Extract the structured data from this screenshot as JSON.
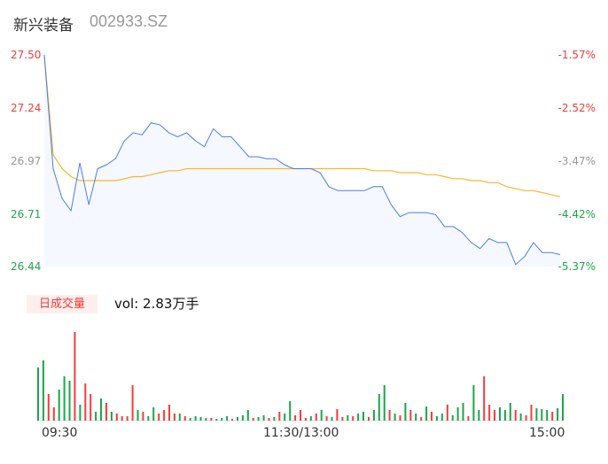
{
  "header": {
    "name": "新兴装备",
    "code": "002933.SZ"
  },
  "price_axis": [
    {
      "label": "27.50",
      "color": "#f23d3d"
    },
    {
      "label": "27.24",
      "color": "#f23d3d"
    },
    {
      "label": "26.97",
      "color": "#999999"
    },
    {
      "label": "26.71",
      "color": "#1aa64a"
    },
    {
      "label": "26.44",
      "color": "#1aa64a"
    }
  ],
  "pct_axis": [
    {
      "label": "-1.57%",
      "color": "#f23d3d"
    },
    {
      "label": "-2.52%",
      "color": "#f23d3d"
    },
    {
      "label": "-3.47%",
      "color": "#999999"
    },
    {
      "label": "-4.42%",
      "color": "#1aa64a"
    },
    {
      "label": "-5.37%",
      "color": "#1aa64a"
    }
  ],
  "volume": {
    "tab_label": "日成交量",
    "vol_text": "vol: 2.83万手"
  },
  "time_axis": [
    "09:30",
    "11:30/13:00",
    "15:00"
  ],
  "chart_data": {
    "type": "line",
    "ylim": [
      26.44,
      27.5
    ],
    "colors": {
      "price": "#4a7cf7",
      "avg": "#f5b82e",
      "up": "#f23d3d",
      "down": "#1aa64a"
    },
    "price": [
      27.5,
      26.93,
      26.78,
      26.72,
      26.96,
      26.75,
      26.93,
      26.95,
      26.98,
      27.07,
      27.11,
      27.1,
      27.16,
      27.15,
      27.11,
      27.09,
      27.11,
      27.07,
      27.04,
      27.13,
      27.09,
      27.09,
      27.04,
      26.99,
      26.99,
      26.98,
      26.98,
      26.95,
      26.93,
      26.93,
      26.93,
      26.91,
      26.84,
      26.82,
      26.82,
      26.82,
      26.82,
      26.84,
      26.84,
      26.75,
      26.69,
      26.71,
      26.71,
      26.71,
      26.7,
      26.64,
      26.64,
      26.61,
      26.56,
      26.53,
      26.58,
      26.56,
      26.56,
      26.45,
      26.49,
      26.56,
      26.51,
      26.51,
      26.5
    ],
    "avg": [
      27.5,
      27.0,
      26.93,
      26.89,
      26.87,
      26.87,
      26.87,
      26.87,
      26.87,
      26.88,
      26.89,
      26.89,
      26.9,
      26.91,
      26.92,
      26.92,
      26.93,
      26.93,
      26.93,
      26.93,
      26.93,
      26.93,
      26.93,
      26.93,
      26.93,
      26.93,
      26.93,
      26.93,
      26.93,
      26.93,
      26.93,
      26.93,
      26.93,
      26.93,
      26.93,
      26.93,
      26.93,
      26.92,
      26.92,
      26.92,
      26.91,
      26.91,
      26.91,
      26.9,
      26.9,
      26.89,
      26.88,
      26.88,
      26.87,
      26.87,
      26.86,
      26.86,
      26.84,
      26.83,
      26.82,
      26.82,
      26.81,
      26.8,
      26.79
    ],
    "volume_bars": [
      [
        "g",
        60
      ],
      [
        "g",
        68
      ],
      [
        "r",
        30
      ],
      [
        "r",
        15
      ],
      [
        "g",
        35
      ],
      [
        "g",
        50
      ],
      [
        "g",
        45
      ],
      [
        "r",
        100
      ],
      [
        "g",
        18
      ],
      [
        "r",
        42
      ],
      [
        "r",
        30
      ],
      [
        "g",
        10
      ],
      [
        "g",
        25
      ],
      [
        "r",
        20
      ],
      [
        "g",
        10
      ],
      [
        "r",
        8
      ],
      [
        "r",
        5
      ],
      [
        "r",
        5
      ],
      [
        "r",
        40
      ],
      [
        "g",
        12
      ],
      [
        "r",
        10
      ],
      [
        "g",
        5
      ],
      [
        "g",
        15
      ],
      [
        "r",
        8
      ],
      [
        "r",
        12
      ],
      [
        "r",
        18
      ],
      [
        "r",
        8
      ],
      [
        "g",
        8
      ],
      [
        "r",
        5
      ],
      [
        "g",
        3
      ],
      [
        "g",
        5
      ],
      [
        "g",
        4
      ],
      [
        "g",
        3
      ],
      [
        "r",
        3
      ],
      [
        "g",
        2
      ],
      [
        "g",
        3
      ],
      [
        "g",
        5
      ],
      [
        "r",
        2
      ],
      [
        "g",
        4
      ],
      [
        "g",
        6
      ],
      [
        "g",
        12
      ],
      [
        "r",
        3
      ],
      [
        "g",
        4
      ],
      [
        "g",
        6
      ],
      [
        "r",
        3
      ],
      [
        "g",
        4
      ],
      [
        "r",
        10
      ],
      [
        "g",
        8
      ],
      [
        "g",
        22
      ],
      [
        "r",
        6
      ],
      [
        "r",
        12
      ],
      [
        "r",
        3
      ],
      [
        "g",
        5
      ],
      [
        "r",
        8
      ],
      [
        "g",
        12
      ],
      [
        "r",
        5
      ],
      [
        "g",
        4
      ],
      [
        "r",
        13
      ],
      [
        "r",
        4
      ],
      [
        "g",
        6
      ],
      [
        "r",
        5
      ],
      [
        "g",
        8
      ],
      [
        "g",
        10
      ],
      [
        "r",
        4
      ],
      [
        "g",
        12
      ],
      [
        "g",
        30
      ],
      [
        "g",
        40
      ],
      [
        "r",
        12
      ],
      [
        "g",
        8
      ],
      [
        "r",
        6
      ],
      [
        "g",
        20
      ],
      [
        "r",
        12
      ],
      [
        "g",
        8
      ],
      [
        "r",
        4
      ],
      [
        "g",
        16
      ],
      [
        "r",
        10
      ],
      [
        "g",
        5
      ],
      [
        "g",
        8
      ],
      [
        "r",
        18
      ],
      [
        "g",
        6
      ],
      [
        "g",
        15
      ],
      [
        "g",
        20
      ],
      [
        "r",
        5
      ],
      [
        "g",
        40
      ],
      [
        "g",
        12
      ],
      [
        "r",
        50
      ],
      [
        "r",
        18
      ],
      [
        "r",
        12
      ],
      [
        "g",
        15
      ],
      [
        "g",
        12
      ],
      [
        "g",
        20
      ],
      [
        "r",
        12
      ],
      [
        "g",
        8
      ],
      [
        "r",
        6
      ],
      [
        "r",
        18
      ],
      [
        "g",
        14
      ],
      [
        "g",
        13
      ],
      [
        "g",
        12
      ],
      [
        "r",
        10
      ],
      [
        "g",
        14
      ],
      [
        "g",
        30
      ]
    ]
  }
}
